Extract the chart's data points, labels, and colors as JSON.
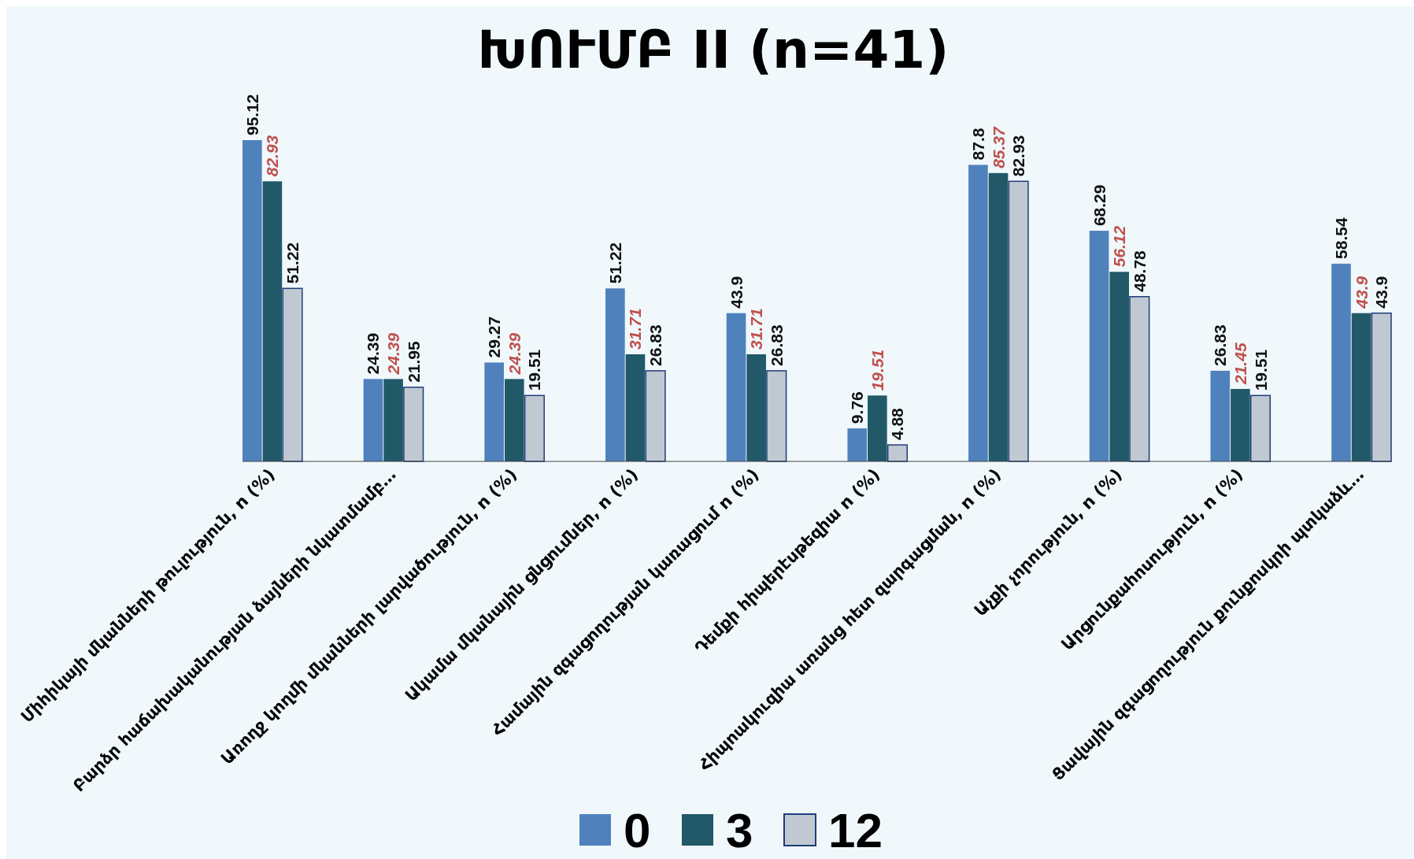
{
  "chart_data": {
    "type": "bar",
    "title": "ԽՈՒՄԲ  II  (n=41)",
    "categories": [
      "Միհիկայի մկանների թուլություն, n (%)",
      "Բարձր հաճախականության ձայների նկատմամբ…",
      "Առողջ կողմի մկանների լարվածություն, n (%)",
      "Ակամա մկանային ցնցումներ, n (%)",
      "Համային զգացողության կառացում n (%)",
      "Դեմքի հիպերէսթեզիա n (%)",
      "Հիպոակուզիա առանց հետ զարգացման, n (%)",
      "Աչքի չորություն, n (%)",
      "Արցունքահոսություն, n (%)",
      "Ցավային զգացողություն  քունքոսկրի  պտկաձև…"
    ],
    "series": [
      {
        "name": "0",
        "color": "#4f81bd",
        "values": [
          95.12,
          24.39,
          29.27,
          51.22,
          43.9,
          9.76,
          87.8,
          68.29,
          26.83,
          58.54
        ]
      },
      {
        "name": "3",
        "color": "#215968",
        "values": [
          82.93,
          24.39,
          24.39,
          31.71,
          31.71,
          19.51,
          85.37,
          56.12,
          21.45,
          43.9
        ]
      },
      {
        "name": "12",
        "color": "#c0c9d1",
        "values": [
          51.22,
          21.95,
          19.51,
          26.83,
          26.83,
          4.88,
          82.93,
          48.78,
          19.51,
          43.9
        ]
      }
    ],
    "data_labels": true,
    "legend": "bottom"
  }
}
